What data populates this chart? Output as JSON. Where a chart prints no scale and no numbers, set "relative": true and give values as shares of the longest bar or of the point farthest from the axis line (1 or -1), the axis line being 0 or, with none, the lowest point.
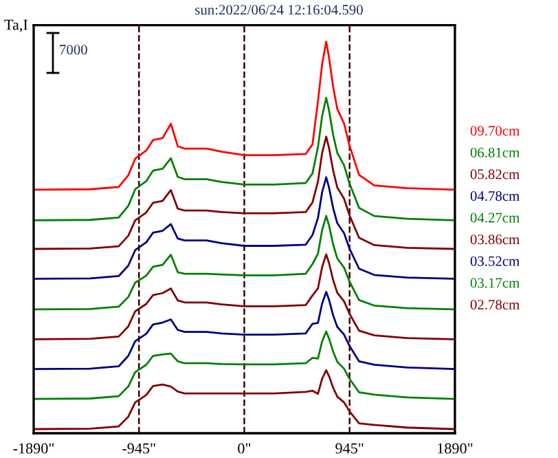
{
  "chart_data": {
    "type": "line",
    "title": "sun:2022/06/24 12:16:04.590",
    "ylabel": "Ta,I",
    "annotations": [
      "7000"
    ],
    "relative": true,
    "legend": "right",
    "tick_labels": "x",
    "line_style": "solid",
    "x": [
      -1890,
      -1385,
      -1127,
      -1041,
      -979,
      -880,
      -819,
      -733,
      -659,
      -597,
      -535,
      -338,
      -203,
      0,
      267,
      551,
      612,
      661,
      698,
      735,
      760,
      797,
      834,
      895,
      944,
      1030,
      1166,
      1461,
      1890
    ],
    "xlim": [
      -1890,
      1890
    ],
    "xticks": [
      {
        "value": -1890,
        "label": "-1890\""
      },
      {
        "value": -945,
        "label": "-945\""
      },
      {
        "value": 0,
        "label": "0\""
      },
      {
        "value": 945,
        "label": "945\""
      },
      {
        "value": 1890,
        "label": "1890\""
      }
    ],
    "ref_lines": [
      {
        "axis": "x",
        "value": -945,
        "color": "#400000",
        "line_style": "dashed"
      },
      {
        "axis": "x",
        "value": 0,
        "color": "#400000",
        "line_style": "dashed"
      },
      {
        "axis": "x",
        "value": 945,
        "color": "#400000",
        "line_style": "dashed"
      }
    ],
    "series": [
      {
        "name": "09.70cm",
        "color": "#ff0000",
        "values": [
          0.618,
          0.619,
          0.625,
          0.655,
          0.698,
          0.719,
          0.746,
          0.751,
          0.788,
          0.73,
          0.724,
          0.724,
          0.716,
          0.707,
          0.707,
          0.71,
          0.735,
          0.846,
          0.941,
          1,
          0.96,
          0.884,
          0.827,
          0.789,
          0.732,
          0.656,
          0.629,
          0.622,
          0.618
        ]
      },
      {
        "name": "06.81cm",
        "color": "#008000",
        "values": [
          0.539,
          0.54,
          0.546,
          0.576,
          0.619,
          0.64,
          0.667,
          0.672,
          0.699,
          0.651,
          0.645,
          0.645,
          0.638,
          0.631,
          0.631,
          0.635,
          0.66,
          0.728,
          0.807,
          0.855,
          0.823,
          0.76,
          0.713,
          0.681,
          0.634,
          0.571,
          0.55,
          0.543,
          0.539
        ]
      },
      {
        "name": "05.82cm",
        "color": "#800000",
        "values": [
          0.465,
          0.466,
          0.472,
          0.499,
          0.539,
          0.559,
          0.584,
          0.589,
          0.617,
          0.569,
          0.564,
          0.564,
          0.56,
          0.557,
          0.557,
          0.56,
          0.585,
          0.639,
          0.712,
          0.755,
          0.726,
          0.668,
          0.624,
          0.595,
          0.552,
          0.494,
          0.475,
          0.468,
          0.465
        ]
      },
      {
        "name": "04.78cm",
        "color": "#000080",
        "values": [
          0.388,
          0.389,
          0.395,
          0.422,
          0.462,
          0.482,
          0.507,
          0.512,
          0.529,
          0.492,
          0.487,
          0.487,
          0.48,
          0.473,
          0.473,
          0.476,
          0.501,
          0.545,
          0.611,
          0.65,
          0.624,
          0.571,
          0.532,
          0.506,
          0.466,
          0.414,
          0.398,
          0.391,
          0.388
        ]
      },
      {
        "name": "04.27cm",
        "color": "#008000",
        "values": [
          0.309,
          0.31,
          0.316,
          0.341,
          0.378,
          0.396,
          0.419,
          0.424,
          0.45,
          0.405,
          0.401,
          0.401,
          0.399,
          0.397,
          0.397,
          0.401,
          0.426,
          0.453,
          0.513,
          0.55,
          0.526,
          0.477,
          0.441,
          0.417,
          0.381,
          0.333,
          0.319,
          0.312,
          0.309
        ]
      },
      {
        "name": "03.86cm",
        "color": "#800000",
        "values": [
          0.232,
          0.233,
          0.239,
          0.265,
          0.304,
          0.323,
          0.346,
          0.351,
          0.363,
          0.332,
          0.327,
          0.327,
          0.322,
          0.317,
          0.317,
          0.32,
          0.345,
          0.363,
          0.418,
          0.451,
          0.429,
          0.385,
          0.352,
          0.33,
          0.298,
          0.254,
          0.242,
          0.235,
          0.232
        ]
      },
      {
        "name": "03.52cm",
        "color": "#000080",
        "values": [
          0.155,
          0.156,
          0.162,
          0.189,
          0.227,
          0.246,
          0.27,
          0.275,
          0.283,
          0.256,
          0.251,
          0.251,
          0.247,
          0.244,
          0.244,
          0.247,
          0.272,
          0.274,
          0.324,
          0.354,
          0.334,
          0.294,
          0.264,
          0.244,
          0.215,
          0.175,
          0.166,
          0.159,
          0.155
        ]
      },
      {
        "name": "03.17cm",
        "color": "#008000",
        "values": [
          0.078,
          0.079,
          0.085,
          0.11,
          0.147,
          0.166,
          0.189,
          0.193,
          0.195,
          0.175,
          0.17,
          0.17,
          0.168,
          0.167,
          0.167,
          0.17,
          0.184,
          0.182,
          0.226,
          0.252,
          0.234,
          0.2,
          0.174,
          0.156,
          0.13,
          0.095,
          0.089,
          0.082,
          0.078
        ]
      },
      {
        "name": "02.78cm",
        "color": "#800000",
        "values": [
          0,
          0.001,
          0.007,
          0.032,
          0.069,
          0.088,
          0.111,
          0.115,
          0.11,
          0.097,
          0.092,
          0.092,
          0.092,
          0.092,
          0.092,
          0.096,
          0.099,
          0.091,
          0.13,
          0.152,
          0.137,
          0.107,
          0.084,
          0.069,
          0.046,
          0.015,
          0.011,
          0.004,
          0
        ]
      }
    ]
  }
}
